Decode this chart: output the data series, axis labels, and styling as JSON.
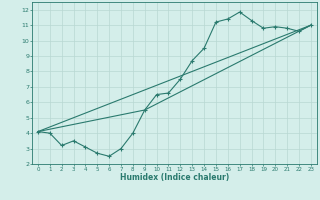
{
  "xlabel": "Humidex (Indice chaleur)",
  "bg_color": "#d4eeea",
  "grid_color": "#b8d8d2",
  "line_color": "#2a7a6e",
  "xlim": [
    -0.5,
    23.5
  ],
  "ylim": [
    2,
    12.5
  ],
  "xticks": [
    0,
    1,
    2,
    3,
    4,
    5,
    6,
    7,
    8,
    9,
    10,
    11,
    12,
    13,
    14,
    15,
    16,
    17,
    18,
    19,
    20,
    21,
    22,
    23
  ],
  "yticks": [
    2,
    3,
    4,
    5,
    6,
    7,
    8,
    9,
    10,
    11,
    12
  ],
  "line1_x": [
    0,
    1,
    2,
    3,
    4,
    5,
    6,
    7,
    8,
    9,
    10,
    11,
    12,
    13,
    14,
    15,
    16,
    17,
    18,
    19,
    20,
    21,
    22,
    23
  ],
  "line1_y": [
    4.1,
    4.0,
    3.2,
    3.5,
    3.1,
    2.7,
    2.5,
    3.0,
    4.0,
    5.5,
    6.5,
    6.6,
    7.5,
    8.7,
    9.5,
    11.2,
    11.4,
    11.85,
    11.3,
    10.8,
    10.9,
    10.8,
    10.6,
    11.0
  ],
  "line2_x": [
    0,
    23
  ],
  "line2_y": [
    4.1,
    11.0
  ],
  "line3_x": [
    0,
    9,
    23
  ],
  "line3_y": [
    4.1,
    5.5,
    11.0
  ]
}
